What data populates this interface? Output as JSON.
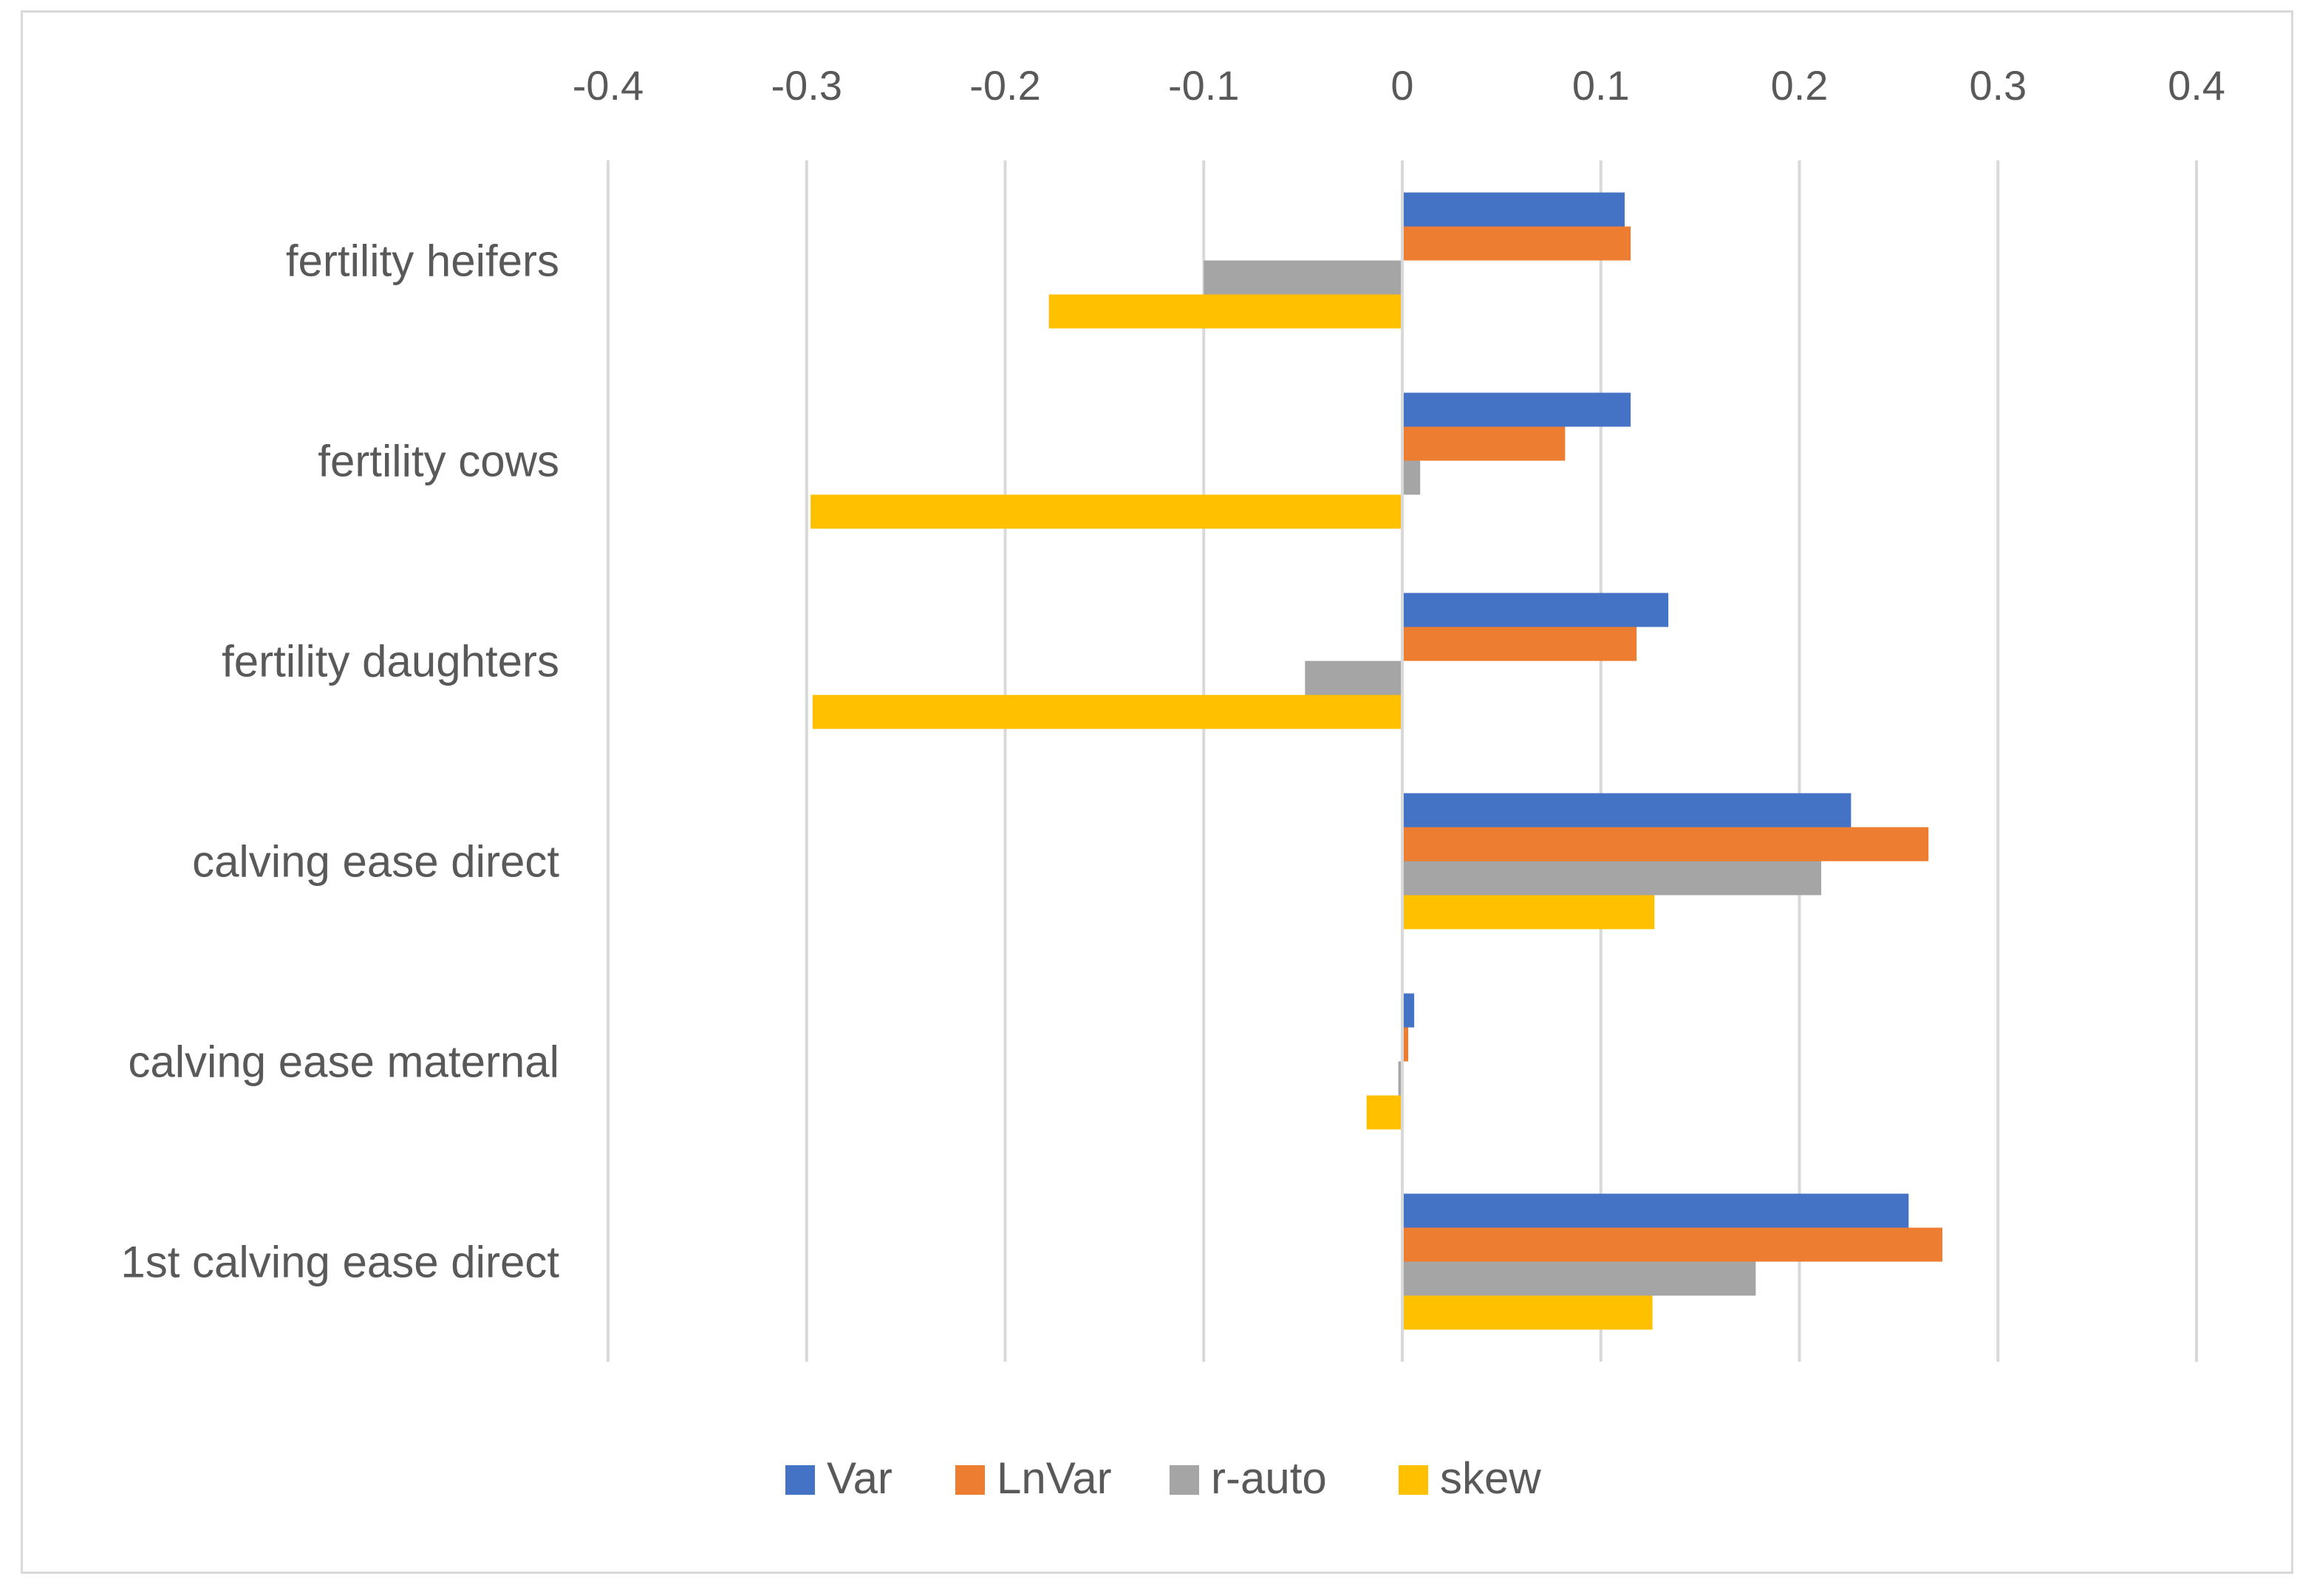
{
  "chart_data": {
    "type": "bar",
    "orientation": "horizontal",
    "title": "",
    "xlabel": "",
    "ylabel": "",
    "xlim": [
      -0.4,
      0.4
    ],
    "ticks": [
      -0.4,
      -0.3,
      -0.2,
      -0.1,
      0,
      0.1,
      0.2,
      0.3,
      0.4
    ],
    "tick_labels": [
      "-0.4",
      "-0.3",
      "-0.2",
      "-0.1",
      "0",
      "0.1",
      "0.2",
      "0.3",
      "0.4"
    ],
    "grid": true,
    "legend_position": "bottom",
    "categories": [
      "fertility heifers",
      "fertility cows",
      "fertility daughters",
      "calving ease direct",
      "calving ease maternal",
      "1st calving ease direct"
    ],
    "series": [
      {
        "name": "Var",
        "color": "#4472C4",
        "values": [
          0.112,
          0.115,
          0.134,
          0.226,
          0.006,
          0.255
        ]
      },
      {
        "name": "LnVar",
        "color": "#ED7D31",
        "values": [
          0.115,
          0.082,
          0.118,
          0.265,
          0.003,
          0.272
        ]
      },
      {
        "name": "r-auto",
        "color": "#A5A5A5",
        "values": [
          -0.1,
          0.009,
          -0.049,
          0.211,
          -0.002,
          0.178
        ]
      },
      {
        "name": "skew",
        "color": "#FFC000",
        "values": [
          -0.178,
          -0.298,
          -0.297,
          0.127,
          -0.018,
          0.126
        ]
      }
    ]
  }
}
